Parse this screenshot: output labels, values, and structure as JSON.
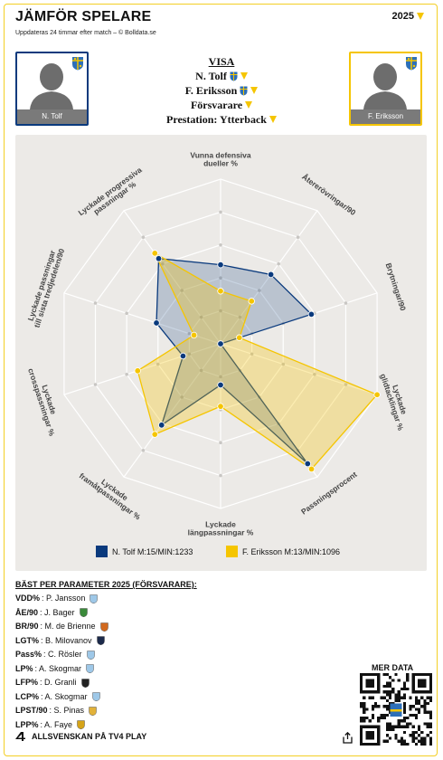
{
  "header": {
    "title": "JÄMFÖR SPELARE",
    "subtitle": "Uppdateras 24 timmar efter match – © Bolldata.se",
    "season": "2025"
  },
  "players": {
    "left": {
      "name": "N. Tolf",
      "color": "#0a3a7d"
    },
    "right": {
      "name": "F. Eriksson",
      "color": "#f5c500"
    }
  },
  "options": {
    "visa": "VISA",
    "player1": "N. Tolf",
    "player2": "F. Eriksson",
    "position": "Försvarare",
    "performance": "Prestation: Ytterback"
  },
  "chart_data": {
    "type": "radar",
    "axes": [
      "Vunna defensiva dueller %",
      "Återerövringar/90",
      "Brytningar/90",
      "Lyckade glidtacklingar %",
      "Passningsprocent",
      "Lyckade längpassningar %",
      "Lyckade framåtpassningar %",
      "Lyckade crosspassningar %",
      "Lyckade passningar till sista tredjedelen/90",
      "Lyckade progressiva passningar %"
    ],
    "range": [
      0,
      100
    ],
    "grid_levels": 5,
    "series": [
      {
        "name": "N. Tolf M:15/MIN:1233",
        "color": "#0a3a7d",
        "values": [
          48,
          52,
          58,
          0,
          90,
          25,
          61,
          24,
          41,
          64
        ]
      },
      {
        "name": "F. Eriksson M:13/MIN:1096",
        "color": "#f5c500",
        "values": [
          32,
          32,
          12,
          100,
          94,
          38,
          68,
          53,
          17,
          68
        ]
      }
    ],
    "legend": "bottom"
  },
  "best": {
    "title": "BÄST PER PARAMETER 2025 (FÖRSVARARE):",
    "items": [
      {
        "k": "VDD%",
        "v": "P. Jansson",
        "c": "#9ec8e8"
      },
      {
        "k": "ÅE/90",
        "v": "J. Bager",
        "c": "#3a8a3a"
      },
      {
        "k": "BR/90",
        "v": "M. de Brienne",
        "c": "#d2691e"
      },
      {
        "k": "LGT%",
        "v": "B. Milovanov",
        "c": "#1c2a4a"
      },
      {
        "k": "Pass%",
        "v": "C. Rösler",
        "c": "#9ec8e8"
      },
      {
        "k": "LP%",
        "v": "A. Skogmar",
        "c": "#9ec8e8"
      },
      {
        "k": "LFP%",
        "v": "D. Granli",
        "c": "#222222"
      },
      {
        "k": "LCP%",
        "v": "A. Skogmar",
        "c": "#9ec8e8"
      },
      {
        "k": "LPST/90",
        "v": "S. Pinas",
        "c": "#e2b23a"
      },
      {
        "k": "LPP%",
        "v": "A. Faye",
        "c": "#d6a418"
      }
    ]
  },
  "footer": {
    "brand": "ALLSVENSKAN PÅ TV4 PLAY",
    "mer_data": "MER DATA"
  }
}
